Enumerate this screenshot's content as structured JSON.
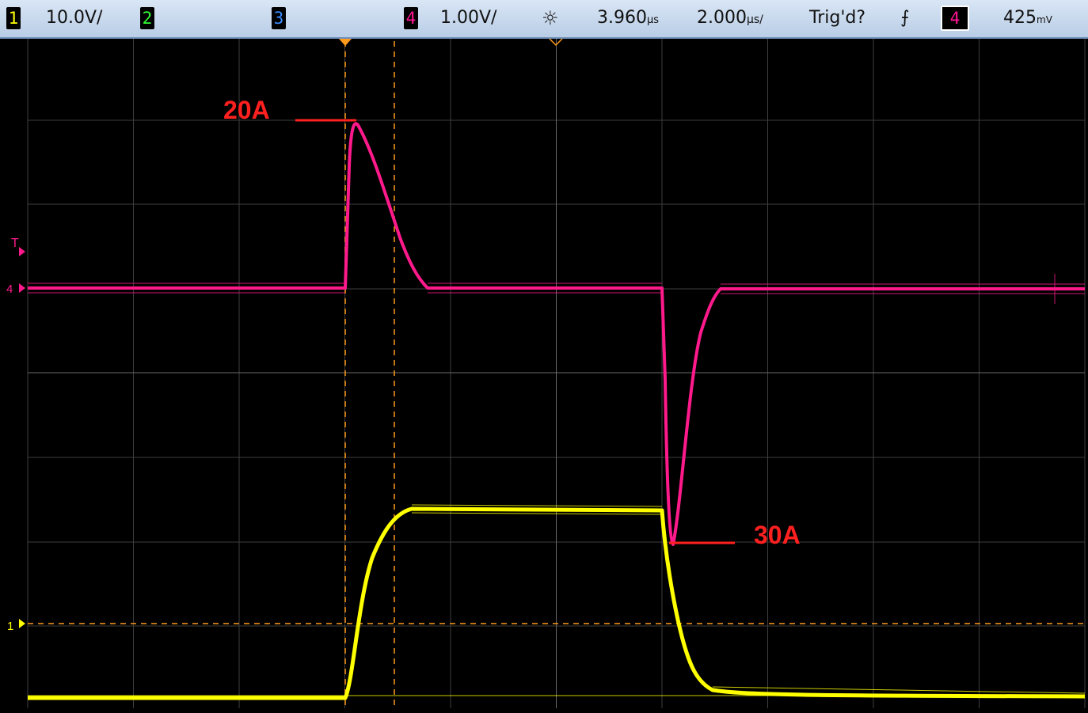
{
  "status": {
    "ch1": {
      "number": "1",
      "scale": "10.0V/",
      "color": "#ffff00"
    },
    "ch2": {
      "number": "2",
      "color": "#33ff33"
    },
    "ch3": {
      "number": "3",
      "color": "#3a8cff"
    },
    "ch4": {
      "number": "4",
      "scale": "1.00V/",
      "color": "#ff1493"
    },
    "timebase": {
      "delay": "3.960",
      "delay_unit": "µs",
      "scale": "2.000",
      "scale_unit": "µs/"
    },
    "trigger": {
      "state": "Trig'd?",
      "slope_symbol": "⨍",
      "source": "4",
      "level": "425",
      "level_unit": "mV"
    }
  },
  "annotations": {
    "peak_positive": "20A",
    "peak_negative": "30A",
    "color": "#ff2020"
  },
  "markers": {
    "trigger_marker": "T",
    "ch4_ground": "4",
    "ch1_ground": "1"
  },
  "colors": {
    "background": "#000000",
    "grid": "#444444",
    "cursor": "#ff9a1a",
    "ch1_trace": "#ffff00",
    "ch4_trace": "#ff1a8c"
  }
}
